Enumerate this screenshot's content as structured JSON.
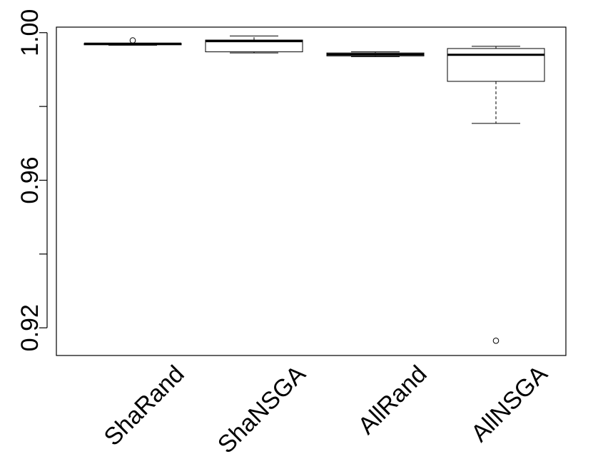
{
  "chart_data": {
    "type": "boxplot",
    "title": "",
    "xlabel": "",
    "ylabel": "",
    "ylim": [
      0.9125,
      1.0015
    ],
    "y_ticks": [
      0.92,
      0.94,
      0.96,
      0.98,
      1.0
    ],
    "y_tick_labels": [
      "0.92",
      "",
      "0.96",
      "",
      "1.00"
    ],
    "grid": false,
    "legend": "none",
    "categories": [
      "ShaRand",
      "ShaNSGA",
      "AllRand",
      "AllNSGA"
    ],
    "boxes": [
      {
        "whisker_low": 0.9966,
        "q1": 0.9967,
        "median": 0.997,
        "q3": 0.9971,
        "whisker_high": 0.9971,
        "outliers": [
          0.9979
        ]
      },
      {
        "whisker_low": 0.9945,
        "q1": 0.9948,
        "median": 0.9977,
        "q3": 0.998,
        "whisker_high": 0.9991,
        "outliers": []
      },
      {
        "whisker_low": 0.9935,
        "q1": 0.9937,
        "median": 0.9941,
        "q3": 0.9945,
        "whisker_high": 0.9948,
        "outliers": []
      },
      {
        "whisker_low": 0.9754,
        "q1": 0.9868,
        "median": 0.994,
        "q3": 0.9957,
        "whisker_high": 0.9963,
        "outliers": [
          0.9165
        ]
      }
    ]
  }
}
